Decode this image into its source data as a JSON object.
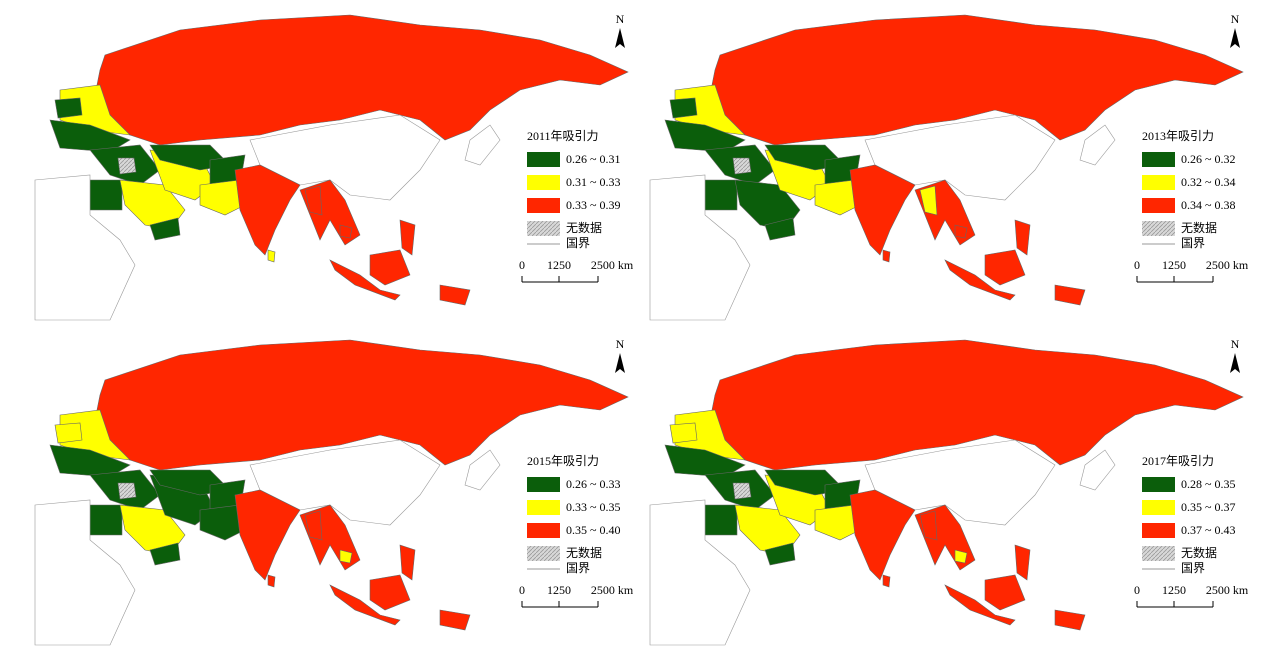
{
  "panels": [
    {
      "legend_title": "2011年吸引力",
      "classes": [
        {
          "label": "0.26 ~ 0.31",
          "color": "#0b5e0b"
        },
        {
          "label": "0.31 ~ 0.33",
          "color": "#ffff00"
        },
        {
          "label": "0.33 ~ 0.39",
          "color": "#ff2600"
        }
      ],
      "no_data": "无数据",
      "border": "国界",
      "scale": [
        "0",
        "1250",
        "2500 km"
      ],
      "north": "N"
    },
    {
      "legend_title": "2013年吸引力",
      "classes": [
        {
          "label": "0.26 ~ 0.32",
          "color": "#0b5e0b"
        },
        {
          "label": "0.32 ~ 0.34",
          "color": "#ffff00"
        },
        {
          "label": "0.34 ~ 0.38",
          "color": "#ff2600"
        }
      ],
      "no_data": "无数据",
      "border": "国界",
      "scale": [
        "0",
        "1250",
        "2500 km"
      ],
      "north": "N"
    },
    {
      "legend_title": "2015年吸引力",
      "classes": [
        {
          "label": "0.26 ~ 0.33",
          "color": "#0b5e0b"
        },
        {
          "label": "0.33 ~ 0.35",
          "color": "#ffff00"
        },
        {
          "label": "0.35 ~ 0.40",
          "color": "#ff2600"
        }
      ],
      "no_data": "无数据",
      "border": "国界",
      "scale": [
        "0",
        "1250",
        "2500 km"
      ],
      "north": "N"
    },
    {
      "legend_title": "2017年吸引力",
      "classes": [
        {
          "label": "0.28 ~ 0.35",
          "color": "#0b5e0b"
        },
        {
          "label": "0.35 ~ 0.37",
          "color": "#ffff00"
        },
        {
          "label": "0.37 ~ 0.43",
          "color": "#ff2600"
        }
      ],
      "no_data": "无数据",
      "border": "国界",
      "scale": [
        "0",
        "1250",
        "2500 km"
      ],
      "north": "N"
    }
  ]
}
